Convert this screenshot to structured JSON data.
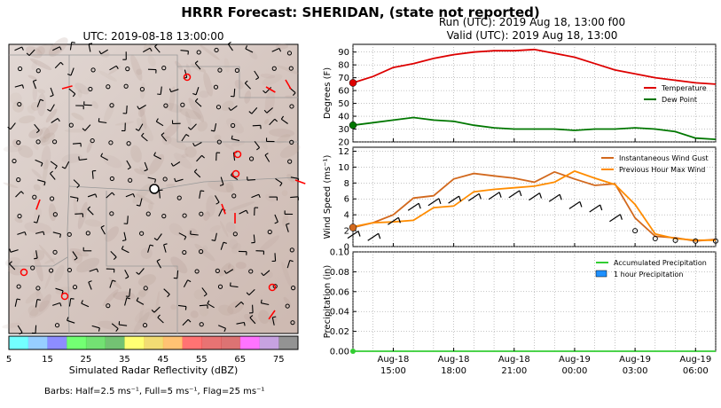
{
  "title": "HRRR Forecast: SHERIDAN, (state not reported)",
  "map": {
    "title": "UTC: 2019-08-18 13:00:00",
    "colorbar": {
      "label": "Simulated Radar Reflectivity (dBZ)",
      "ticks": [
        "5",
        "15",
        "25",
        "35",
        "45",
        "55",
        "65",
        "75"
      ],
      "colors": [
        "#00ffff",
        "#42a5ff",
        "#3030ff",
        "#00ff00",
        "#00c800",
        "#009000",
        "#ffff00",
        "#e7c000",
        "#ff9000",
        "#ff0000",
        "#d60000",
        "#c00000",
        "#ff00ff",
        "#9955c9",
        "#3a3a3a"
      ]
    },
    "barbs_note": "Barbs: Half=2.5 ms⁻¹, Full=5 ms⁻¹, Flag=25 ms⁻¹"
  },
  "run_line": "Run (UTC): 2019 Aug 18, 13:00 f00",
  "valid_line": "Valid (UTC): 2019 Aug 18, 13:00",
  "x_ticks": [
    {
      "line1": "Aug-18",
      "line2": "15:00",
      "hour": 2
    },
    {
      "line1": "Aug-18",
      "line2": "18:00",
      "hour": 5
    },
    {
      "line1": "Aug-18",
      "line2": "21:00",
      "hour": 8
    },
    {
      "line1": "Aug-19",
      "line2": "00:00",
      "hour": 11
    },
    {
      "line1": "Aug-19",
      "line2": "03:00",
      "hour": 14
    },
    {
      "line1": "Aug-19",
      "line2": "06:00",
      "hour": 17
    }
  ],
  "chart_data": [
    {
      "type": "line",
      "ylabel": "Degrees (F)",
      "ylim": [
        20,
        96
      ],
      "yticks": [
        20,
        30,
        40,
        50,
        60,
        70,
        80,
        90
      ],
      "x": [
        "13:00",
        "14:00",
        "15:00",
        "16:00",
        "17:00",
        "18:00",
        "19:00",
        "20:00",
        "21:00",
        "22:00",
        "23:00",
        "00:00",
        "01:00",
        "02:00",
        "03:00",
        "04:00",
        "05:00",
        "06:00",
        "07:00"
      ],
      "legend": "right",
      "series": [
        {
          "name": "Temperature",
          "color": "#dd0000",
          "values": [
            66,
            71,
            78,
            81,
            85,
            88,
            90,
            91,
            91,
            92,
            89,
            86,
            81,
            76,
            73,
            70,
            68,
            66,
            65
          ]
        },
        {
          "name": "Dew Point",
          "color": "#007700",
          "values": [
            33,
            35,
            37,
            39,
            37,
            36,
            33,
            31,
            30,
            30,
            30,
            29,
            30,
            30,
            31,
            30,
            28,
            23,
            22
          ]
        }
      ]
    },
    {
      "type": "line",
      "ylabel": "Wind Speed (ms⁻¹)",
      "ylim": [
        0,
        12.5
      ],
      "yticks": [
        0,
        2,
        4,
        6,
        8,
        10,
        12
      ],
      "legend": "top-right",
      "series": [
        {
          "name": "Instantaneous Wind Gust",
          "color": "#d2691e",
          "values": [
            2.4,
            3.0,
            4.0,
            6.1,
            6.4,
            8.5,
            9.2,
            8.9,
            8.6,
            8.1,
            9.4,
            8.5,
            7.7,
            7.9,
            3.6,
            1.3,
            1.1,
            0.7,
            0.9
          ]
        },
        {
          "name": "Previous Hour Max Wind",
          "color": "#ff8c00",
          "values": [
            2.5,
            3.0,
            3.1,
            3.3,
            4.9,
            5.1,
            6.9,
            7.2,
            7.4,
            7.6,
            8.1,
            9.5,
            8.6,
            7.8,
            5.3,
            1.6,
            1.0,
            0.8,
            0.8
          ]
        }
      ]
    },
    {
      "type": "area",
      "ylabel": "Precipitation (in)",
      "ylim": [
        0,
        0.1
      ],
      "yticks": [
        "0.00",
        "0.02",
        "0.04",
        "0.06",
        "0.08",
        "0.10"
      ],
      "legend": "top-right",
      "series": [
        {
          "name": "Accumulated Precipitation",
          "color": "#32cd32",
          "values": [
            0,
            0,
            0,
            0,
            0,
            0,
            0,
            0,
            0,
            0,
            0,
            0,
            0,
            0,
            0,
            0,
            0,
            0,
            0
          ]
        },
        {
          "name": "1 hour Precipitation",
          "color": "#1e90ff",
          "values": [
            0,
            0,
            0,
            0,
            0,
            0,
            0,
            0,
            0,
            0,
            0,
            0,
            0,
            0,
            0,
            0,
            0,
            0,
            0
          ]
        }
      ]
    }
  ]
}
